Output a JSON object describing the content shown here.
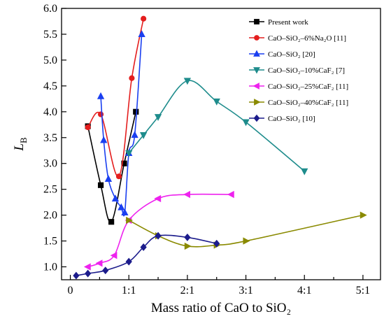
{
  "chart_data": {
    "type": "line",
    "xlabel": "Mass ratio of CaO to SiO₂",
    "ylabel": "L",
    "ylabel_sub": "B",
    "xlim": [
      -0.15,
      5.3
    ],
    "ylim": [
      0.75,
      6.0
    ],
    "x_ticks": [
      0,
      0.5,
      1,
      1.5,
      2,
      2.5,
      3,
      3.5,
      4,
      4.5,
      5
    ],
    "x_tick_labels": [
      "0",
      "",
      "1:1",
      "",
      "2:1",
      "",
      "3:1",
      "",
      "4:1",
      "",
      "5:1"
    ],
    "y_ticks": [
      1.0,
      1.5,
      2.0,
      2.5,
      3.0,
      3.5,
      4.0,
      4.5,
      5.0,
      5.5,
      6.0
    ],
    "y_tick_labels": [
      "1.0",
      "1.5",
      "2.0",
      "2.5",
      "3.0",
      "3.5",
      "4.0",
      "4.5",
      "5.0",
      "5.5",
      "6.0"
    ],
    "legend_position": "top-right",
    "series": [
      {
        "name": "Present work",
        "color": "#000000",
        "marker": "square",
        "x": [
          0.3,
          0.52,
          0.7,
          0.92,
          1.12
        ],
        "y": [
          3.72,
          2.58,
          1.87,
          3.0,
          4.0
        ]
      },
      {
        "name": "CaO–SiO₂–6%Na₂O [11]",
        "color": "#e41e1e",
        "marker": "circle",
        "x": [
          0.3,
          0.52,
          0.83,
          1.05,
          1.25
        ],
        "y": [
          3.7,
          3.95,
          2.75,
          4.65,
          5.8
        ]
      },
      {
        "name": "CaO–SiO₂ [20]",
        "color": "#1a3ff0",
        "marker": "triangle-up",
        "x": [
          0.52,
          0.57,
          0.65,
          0.77,
          0.87,
          0.93,
          1.0,
          1.1,
          1.22
        ],
        "y": [
          4.3,
          3.45,
          2.7,
          2.32,
          2.15,
          2.05,
          3.2,
          3.55,
          5.5
        ]
      },
      {
        "name": "CaO–SiO₂–10%CaF₂ [7]",
        "color": "#1e8c8c",
        "marker": "triangle-down",
        "x": [
          1.0,
          1.25,
          1.5,
          2.0,
          2.5,
          3.0,
          4.0
        ],
        "y": [
          3.2,
          3.55,
          3.9,
          4.6,
          4.2,
          3.8,
          2.85
        ]
      },
      {
        "name": "CaO–SiO₂–25%CaF₂ [11]",
        "color": "#ee22ee",
        "marker": "triangle-left",
        "x": [
          0.3,
          0.5,
          0.75,
          1.0,
          1.5,
          2.0,
          2.75
        ],
        "y": [
          1.0,
          1.07,
          1.22,
          1.9,
          2.32,
          2.4,
          2.4
        ]
      },
      {
        "name": "CaO–SiO₂–40%CaF₂ [11]",
        "color": "#8a8a00",
        "marker": "triangle-right",
        "x": [
          1.0,
          1.5,
          2.0,
          2.5,
          3.0,
          5.0
        ],
        "y": [
          1.9,
          1.6,
          1.4,
          1.42,
          1.5,
          2.0
        ]
      },
      {
        "name": "CaO–SiO₂ [10]",
        "color": "#1c1c8c",
        "marker": "diamond",
        "x": [
          0.1,
          0.3,
          0.6,
          1.0,
          1.25,
          1.5,
          2.0,
          2.5
        ],
        "y": [
          0.83,
          0.87,
          0.93,
          1.1,
          1.38,
          1.6,
          1.57,
          1.45
        ]
      }
    ]
  }
}
